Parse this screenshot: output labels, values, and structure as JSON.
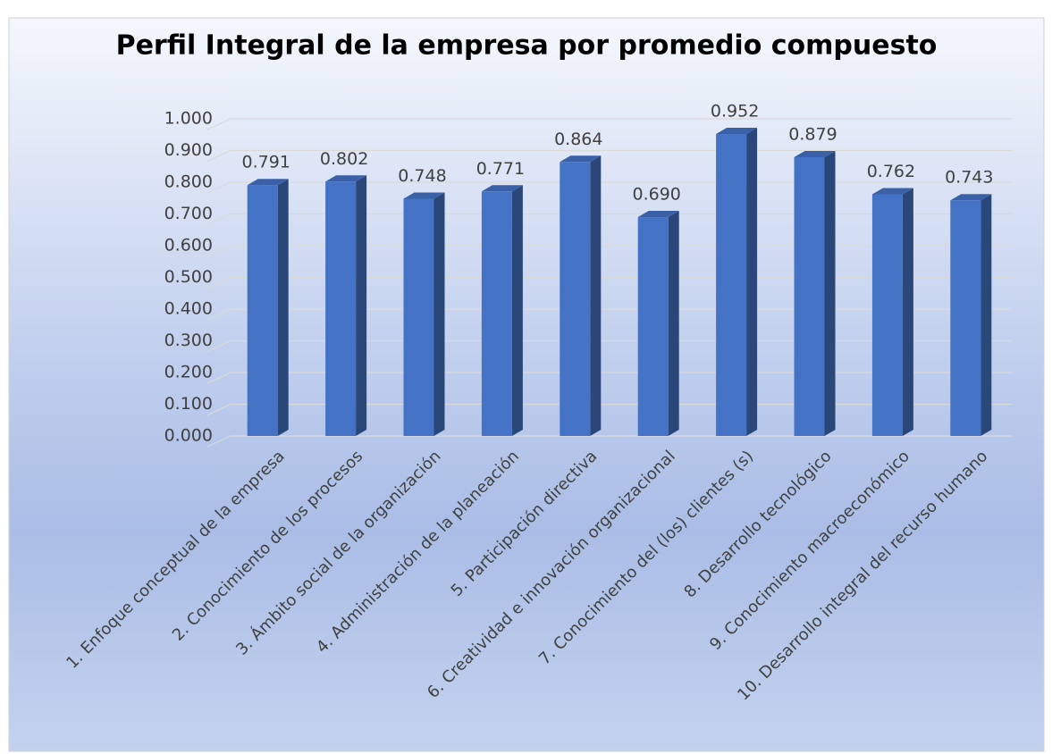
{
  "chart_data": {
    "type": "bar3d",
    "title": "Perfil Integral de la empresa por promedio compuesto",
    "categories": [
      "1. Enfoque conceptual de la empresa",
      "2. Conocimiento de los procesos",
      "3. Ámbito social de la organización",
      "4. Administración de la planeación",
      "5. Participación directiva",
      "6. Creatividad e innovación organizacional",
      "7. Conocimiento del (los) clientes (s)",
      "8. Desarrollo tecnológico",
      "9. Conocimiento macroeconómico",
      "10. Desarrollo integral del recurso humano"
    ],
    "values": [
      0.791,
      0.802,
      0.748,
      0.771,
      0.864,
      0.69,
      0.952,
      0.879,
      0.762,
      0.743
    ],
    "value_labels": [
      "0.791",
      "0.802",
      "0.748",
      "0.771",
      "0.864",
      "0.690",
      "0.952",
      "0.879",
      "0.762",
      "0.743"
    ],
    "color": "#4472c4",
    "ylim": [
      0,
      1
    ],
    "yticks": [
      {
        "value": 0,
        "label": "0.000"
      },
      {
        "value": 0.1,
        "label": "0.100"
      },
      {
        "value": 0.2,
        "label": "0.200"
      },
      {
        "value": 0.3,
        "label": "0.300"
      },
      {
        "value": 0.4,
        "label": "0.400"
      },
      {
        "value": 0.5,
        "label": "0.500"
      },
      {
        "value": 0.6,
        "label": "0.600"
      },
      {
        "value": 0.7,
        "label": "0.700"
      },
      {
        "value": 0.8,
        "label": "0.800"
      },
      {
        "value": 0.9,
        "label": "0.900"
      },
      {
        "value": 1,
        "label": "1.000"
      }
    ],
    "grid": true
  }
}
